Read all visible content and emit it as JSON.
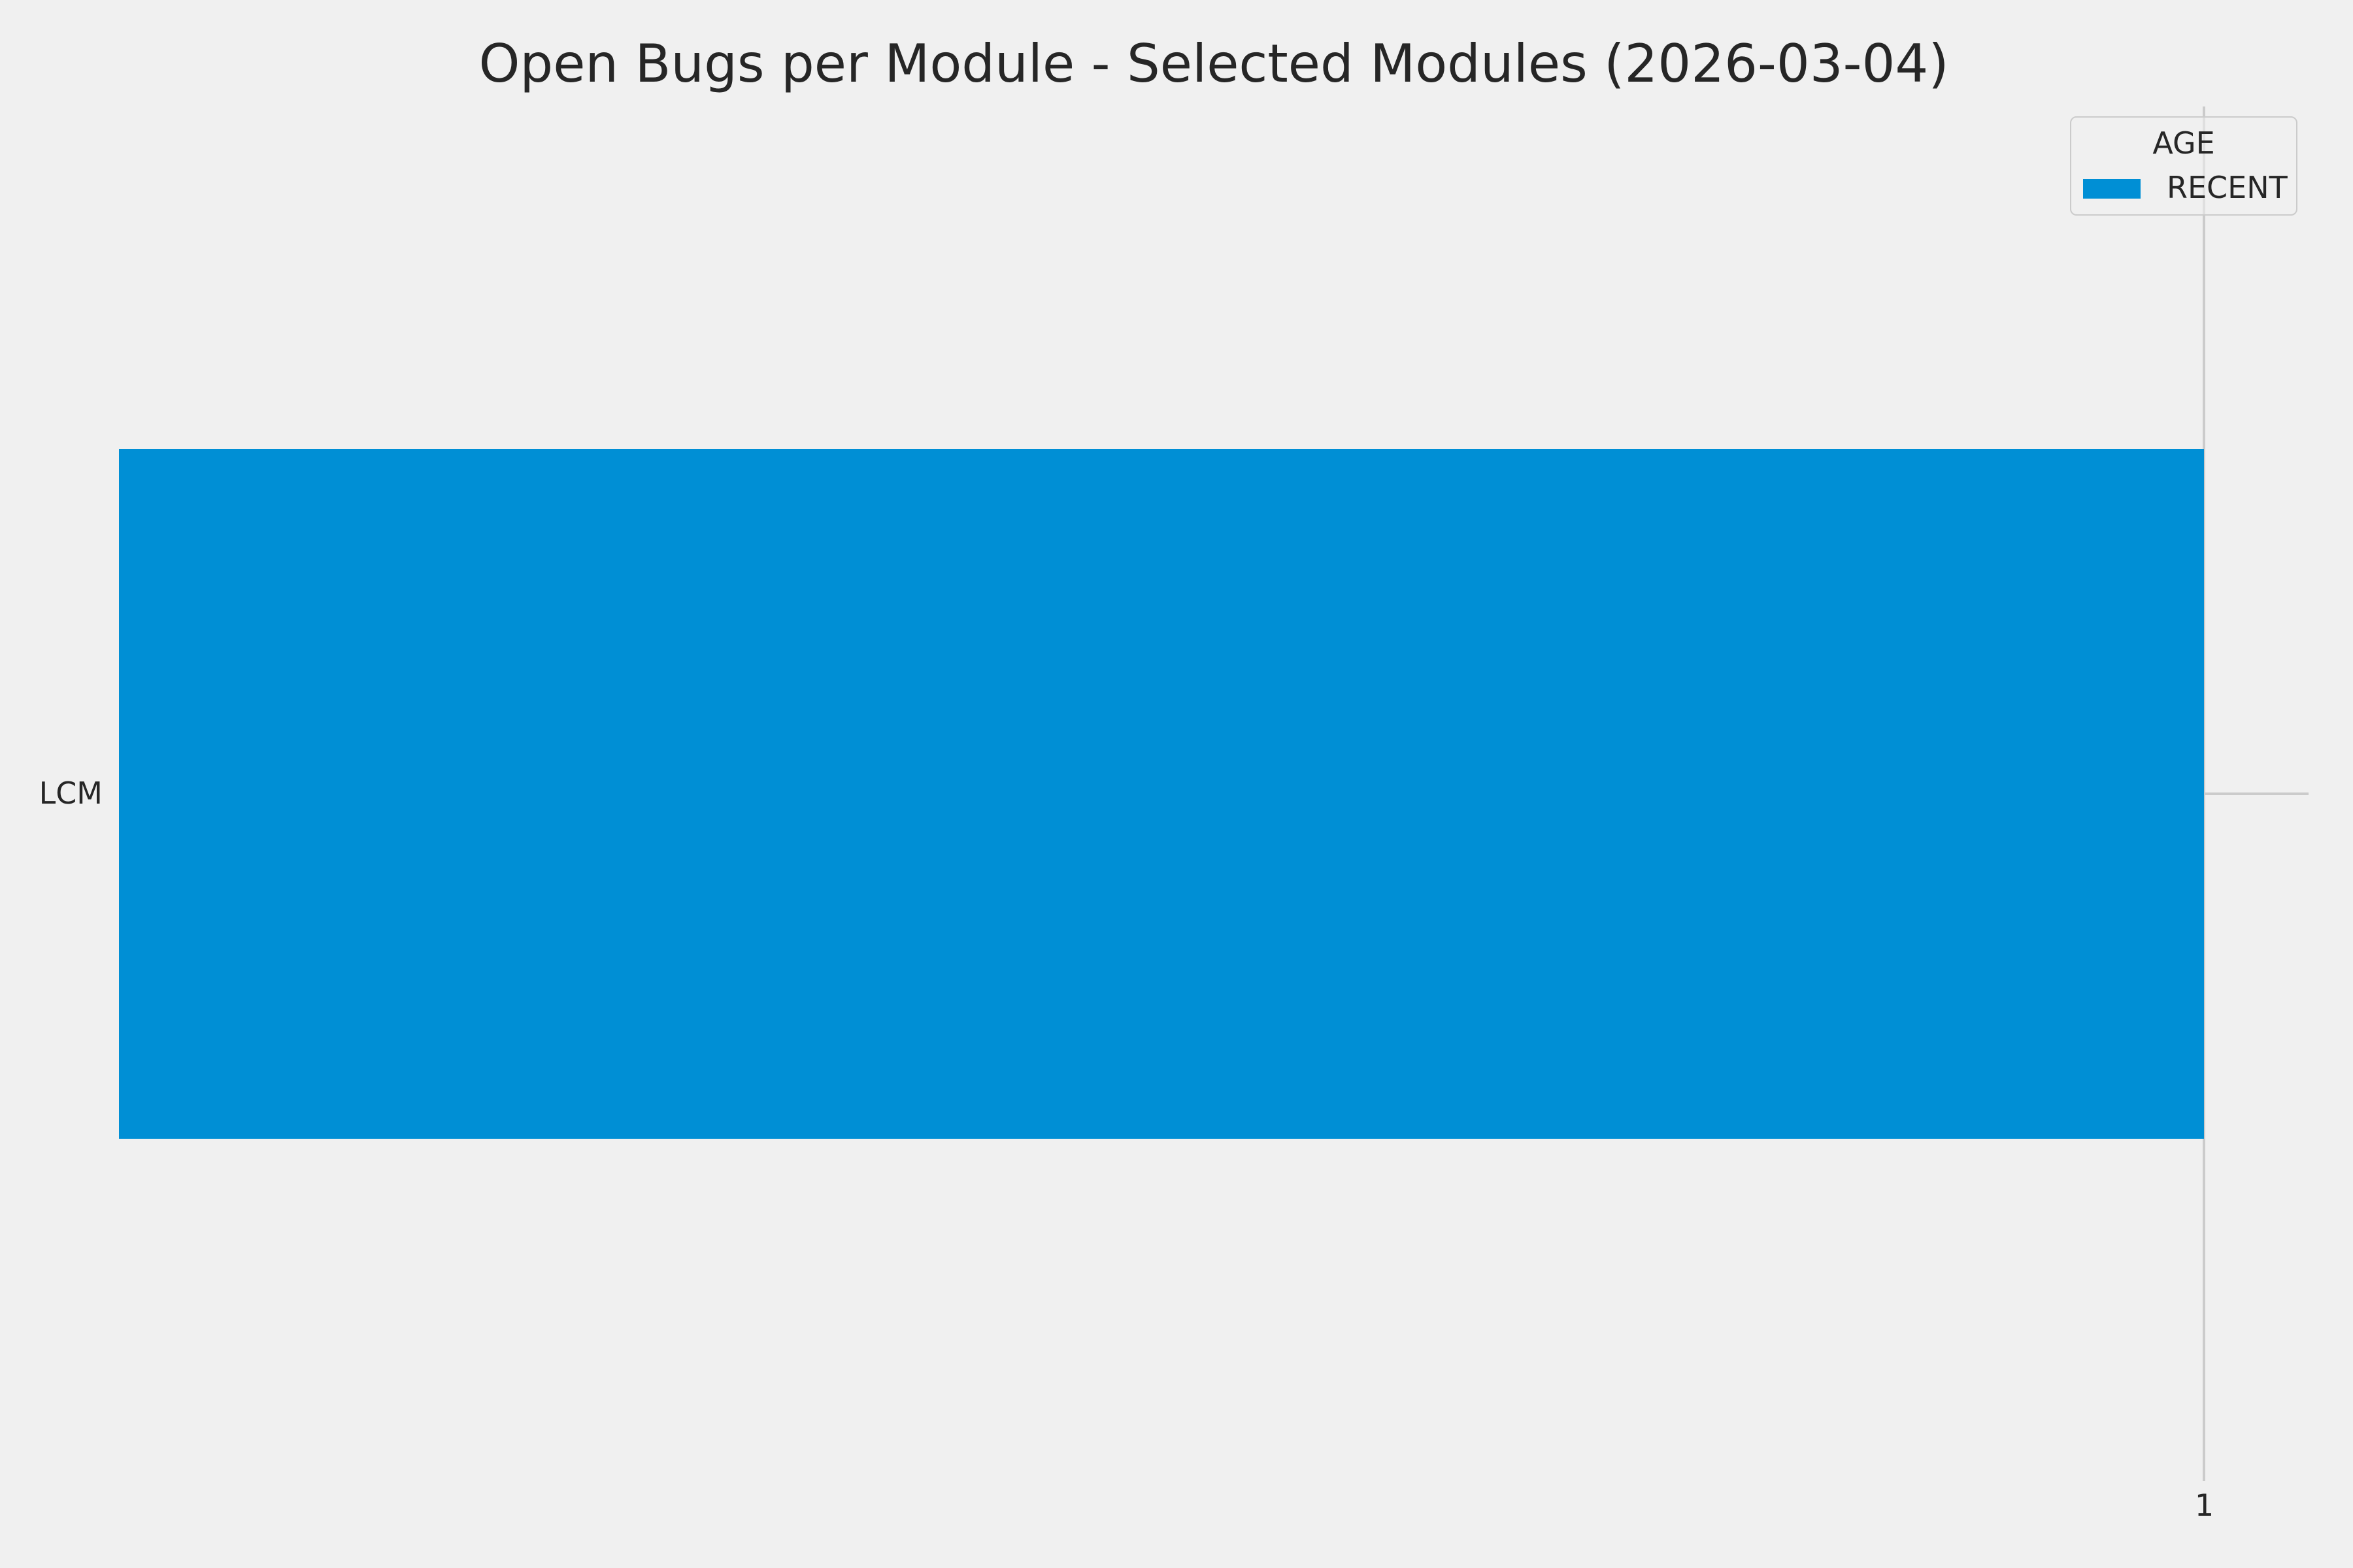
{
  "figure": {
    "background": "#f0f0f0"
  },
  "chart_data": {
    "type": "bar",
    "orientation": "horizontal",
    "title": "Open Bugs per Module - Selected Modules (2026-03-04)",
    "categories": [
      "LCM"
    ],
    "series": [
      {
        "name": "RECENT",
        "values": [
          1
        ],
        "color": "#008fd5"
      }
    ],
    "xlabel": "",
    "ylabel": "",
    "xlim": [
      0,
      1.05
    ],
    "xticks": [
      {
        "value": 1,
        "label": "1"
      }
    ],
    "grid": true,
    "grid_color": "#cbcbcb",
    "text_color": "#262626",
    "bar_thickness_frac": 0.502,
    "legend": {
      "title": "AGE",
      "position": "upper right",
      "entries": [
        {
          "label": "RECENT",
          "color": "#008fd5"
        }
      ]
    }
  }
}
